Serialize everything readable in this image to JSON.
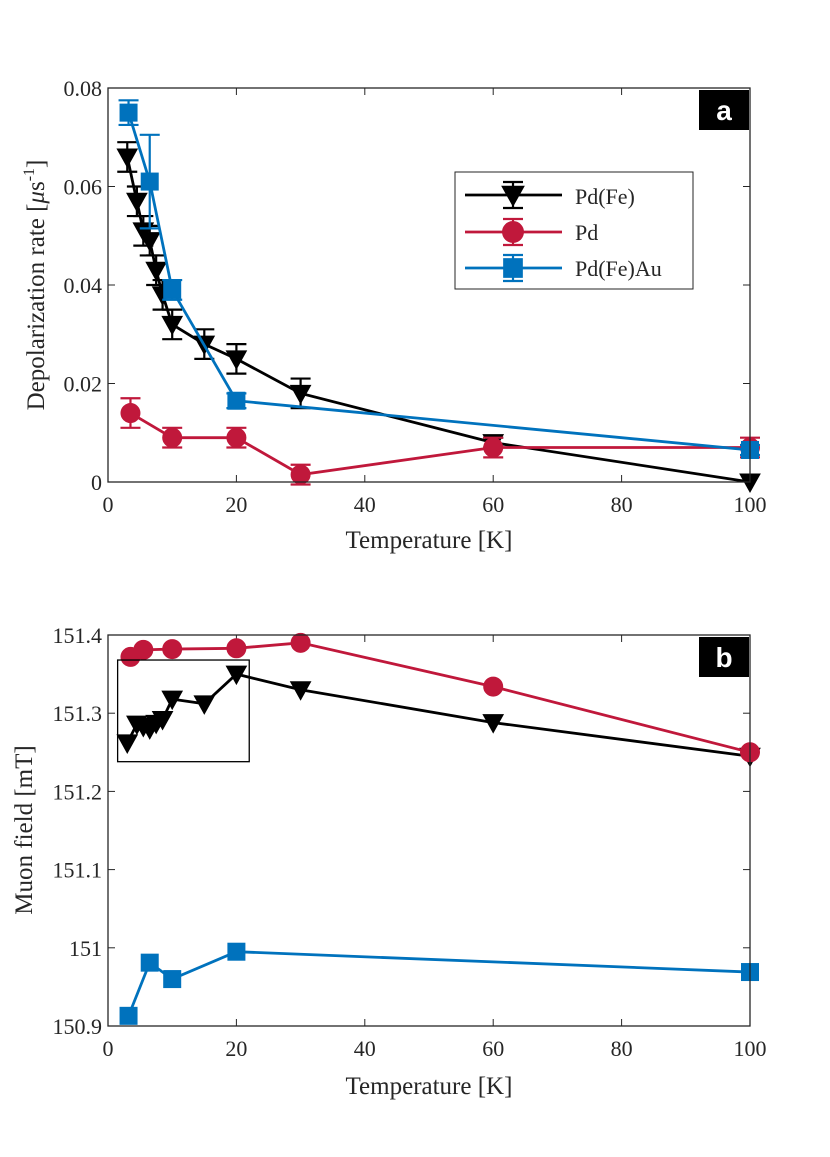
{
  "chart_data": [
    {
      "type": "line",
      "panel_label": "a",
      "xlabel": "Temperature [K]",
      "ylabel_text": "Depolarization rate [",
      "ylabel_mu": "μ",
      "ylabel_unit": "s",
      "ylabel_sup": "-1",
      "ylabel_end": "]",
      "xlim": [
        0,
        100
      ],
      "ylim": [
        0,
        0.08
      ],
      "xticks": [
        0,
        20,
        40,
        60,
        80,
        100
      ],
      "xtick_labels": [
        "0",
        "20",
        "40",
        "60",
        "80",
        "100"
      ],
      "yticks": [
        0,
        0.02,
        0.04,
        0.06,
        0.08
      ],
      "ytick_labels": [
        "0",
        "0.02",
        "0.04",
        "0.06",
        "0.08"
      ],
      "legend_position": "upper-right",
      "series": [
        {
          "name": "Pd(Fe)",
          "color": "#000000",
          "marker": "triangle-down",
          "x": [
            3,
            4.5,
            5.5,
            6.5,
            7.5,
            8.5,
            10,
            15,
            20,
            30,
            60,
            100
          ],
          "y": [
            0.066,
            0.057,
            0.051,
            0.049,
            0.043,
            0.038,
            0.032,
            0.028,
            0.025,
            0.018,
            0.008,
            0.0
          ],
          "err": [
            0.003,
            0.003,
            0.003,
            0.003,
            0.003,
            0.003,
            0.003,
            0.003,
            0.003,
            0.003,
            0.001,
            0.0
          ]
        },
        {
          "name": "Pd",
          "color": "#c0183b",
          "marker": "circle",
          "x": [
            3.5,
            10,
            20,
            30,
            60,
            100
          ],
          "y": [
            0.014,
            0.009,
            0.009,
            0.0015,
            0.007,
            0.007
          ],
          "err": [
            0.003,
            0.002,
            0.002,
            0.002,
            0.002,
            0.002
          ]
        },
        {
          "name": "Pd(Fe)Au",
          "color": "#0072bd",
          "marker": "square",
          "x": [
            3.2,
            6.5,
            10,
            20,
            100
          ],
          "y": [
            0.075,
            0.061,
            0.039,
            0.0165,
            0.0065
          ],
          "err": [
            0.0025,
            0.0095,
            0.002,
            0.0015,
            0.001
          ]
        }
      ]
    },
    {
      "type": "line",
      "panel_label": "b",
      "xlabel": "Temperature [K]",
      "ylabel": "Muon field [mT]",
      "xlim": [
        0,
        100
      ],
      "ylim": [
        150.9,
        151.4
      ],
      "xticks": [
        0,
        20,
        40,
        60,
        80,
        100
      ],
      "xtick_labels": [
        "0",
        "20",
        "40",
        "60",
        "80",
        "100"
      ],
      "yticks": [
        150.9,
        151.0,
        151.1,
        151.2,
        151.3,
        151.4
      ],
      "ytick_labels": [
        "150.9",
        "151",
        "151.1",
        "151.2",
        "151.3",
        "151.4"
      ],
      "inset_box_x": [
        1.5,
        22
      ],
      "inset_box_y": [
        151.238,
        151.368
      ],
      "series": [
        {
          "name": "Pd(Fe)",
          "color": "#000000",
          "marker": "triangle-down",
          "x": [
            3,
            4.5,
            5.5,
            6.5,
            7.5,
            8.5,
            10,
            15,
            20,
            30,
            60,
            100
          ],
          "y": [
            151.262,
            151.286,
            151.283,
            151.28,
            151.287,
            151.292,
            151.318,
            151.312,
            151.35,
            151.33,
            151.288,
            151.245
          ]
        },
        {
          "name": "Pd",
          "color": "#c0183b",
          "marker": "circle",
          "x": [
            3.5,
            5.5,
            10,
            20,
            30,
            60,
            100
          ],
          "y": [
            151.372,
            151.381,
            151.382,
            151.383,
            151.39,
            151.334,
            151.25
          ]
        },
        {
          "name": "Pd(Fe)Au",
          "color": "#0072bd",
          "marker": "square",
          "x": [
            3.2,
            6.5,
            10,
            20,
            100
          ],
          "y": [
            150.913,
            150.981,
            150.96,
            150.995,
            150.969
          ]
        }
      ]
    }
  ]
}
